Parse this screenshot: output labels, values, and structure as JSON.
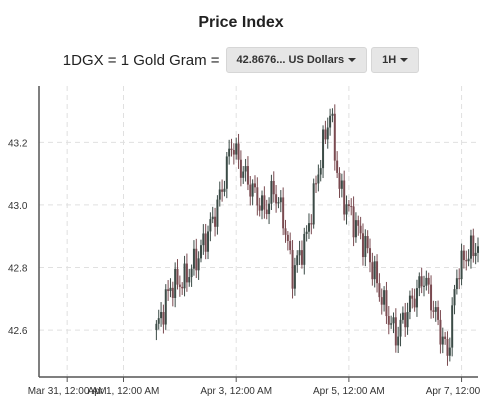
{
  "title": "Price Index",
  "conversion": {
    "label": "1DGX = 1 Gold Gram =",
    "value_dropdown": "42.8676... US Dollars",
    "interval_dropdown": "1H"
  },
  "colors": {
    "up": "#3b4b46",
    "down": "#7a4a50",
    "grid": "#e0e0e0",
    "axis": "#555555"
  },
  "chart_data": {
    "type": "candlestick",
    "title": "",
    "xlabel": "",
    "ylabel": "",
    "ylim": [
      42.45,
      43.38
    ],
    "xlim": [
      "2018-03-31T00:00",
      "2018-04-07T19:00"
    ],
    "y_ticks": [
      "42.6",
      "42.8",
      "43.0",
      "43.2"
    ],
    "y_tick_values": [
      42.6,
      42.8,
      43.0,
      43.2
    ],
    "x_ticks": [
      "Mar 31, 12:00 AM",
      "Apr 1, 12:00 AM",
      "Apr 3, 12:00 AM",
      "Apr 5, 12:00 AM",
      "Apr 7, 12:00 AM"
    ],
    "x_tick_values": [
      "2018-03-31T12:00",
      "2018-04-01T12:00",
      "2018-04-03T12:00",
      "2018-04-05T12:00",
      "2018-04-07T12:00"
    ],
    "grid": true,
    "series_anchors": [
      [
        "2018-04-02T02:00",
        42.6
      ],
      [
        "2018-04-02T08:00",
        42.74
      ],
      [
        "2018-04-02T14:00",
        42.76
      ],
      [
        "2018-04-02T20:00",
        42.84
      ],
      [
        "2018-04-03T02:00",
        42.95
      ],
      [
        "2018-04-03T06:00",
        43.05
      ],
      [
        "2018-04-03T10:00",
        43.2
      ],
      [
        "2018-04-03T14:00",
        43.12
      ],
      [
        "2018-04-03T18:00",
        43.06
      ],
      [
        "2018-04-04T00:00",
        42.98
      ],
      [
        "2018-04-04T04:00",
        43.05
      ],
      [
        "2018-04-04T08:00",
        42.96
      ],
      [
        "2018-04-04T12:00",
        42.78
      ],
      [
        "2018-04-04T18:00",
        42.9
      ],
      [
        "2018-04-05T00:00",
        43.15
      ],
      [
        "2018-04-05T04:00",
        43.3
      ],
      [
        "2018-04-05T08:00",
        43.05
      ],
      [
        "2018-04-05T14:00",
        42.95
      ],
      [
        "2018-04-05T20:00",
        42.85
      ],
      [
        "2018-04-06T02:00",
        42.7
      ],
      [
        "2018-04-06T08:00",
        42.58
      ],
      [
        "2018-04-06T14:00",
        42.68
      ],
      [
        "2018-04-06T20:00",
        42.77
      ],
      [
        "2018-04-07T02:00",
        42.62
      ],
      [
        "2018-04-07T06:00",
        42.52
      ],
      [
        "2018-04-07T10:00",
        42.78
      ],
      [
        "2018-04-07T14:00",
        42.84
      ],
      [
        "2018-04-07T19:00",
        42.87
      ]
    ]
  }
}
